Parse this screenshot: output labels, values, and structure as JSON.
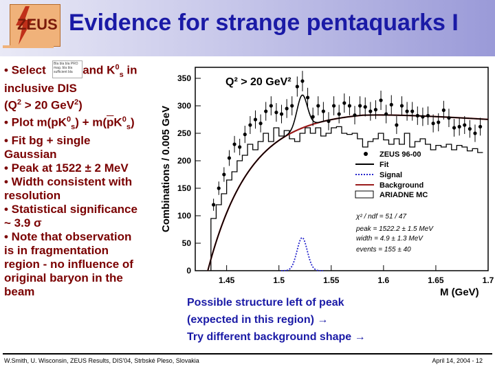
{
  "header": {
    "title": "Evidence for strange pentaquarks I",
    "logo_text": "ZEUS"
  },
  "bullets": [
    {
      "pre": "• Select ",
      "mid": " and K",
      "sup": "0",
      "sub": "s",
      "post": " in"
    },
    {
      "text": "inclusive DIS"
    },
    {
      "pre": "(Q",
      "sup": "2",
      "mid": " > 20 GeV",
      "sup2": "2",
      "post": ")"
    },
    {
      "pre": "• Plot m(pK",
      "sup": "0",
      "sub": "s",
      "mid": ") + m(",
      "over": "p",
      "mid2": "K",
      "sup2": "0",
      "sub2": "s",
      "post": ")"
    },
    {
      "text": "• Fit bg + single"
    },
    {
      "text": "Gaussian"
    },
    {
      "text": "• Peak at 1522 ± 2 MeV"
    },
    {
      "text": "• Width consistent with"
    },
    {
      "text": "resolution"
    },
    {
      "text": "• Statistical significance"
    },
    {
      "text": "~ 3.9 σ"
    },
    {
      "text": "• Note that observation"
    },
    {
      "text": "is in fragmentation"
    },
    {
      "text": "region - no influence of"
    },
    {
      "text": "original baryon in the"
    },
    {
      "text": "beam"
    }
  ],
  "mini_table_lines": [
    "Bla bla bla PRO",
    "mag. bla bla",
    "sufficient bla"
  ],
  "note": {
    "line1": "Possible structure left of peak",
    "line2": "(expected in this region) →",
    "line3": "Try different background shape  →"
  },
  "footer": {
    "left": "W.Smith, U. Wisconsin, ZEUS Results, DIS'04, Strbské Pleso, Slovakia",
    "right": "April 14, 2004 - 12"
  },
  "colors": {
    "title": "#1a1aa6",
    "bullets": "#7a0000",
    "fit": "#000000",
    "signal": "#2222cc",
    "background": "#9a1a1a"
  },
  "chart_data": {
    "type": "scatter",
    "annotation_top": "Q² > 20 GeV²",
    "ylabel": "Combinations / 0.005 GeV",
    "xlabel": "M (GeV)",
    "xlim": [
      1.42,
      1.7
    ],
    "ylim": [
      0,
      370
    ],
    "xticks": [
      "1.45",
      "1.5",
      "1.55",
      "1.6",
      "1.65",
      "1.7"
    ],
    "yticks": [
      "0",
      "50",
      "100",
      "150",
      "200",
      "250",
      "300",
      "350"
    ],
    "legend": [
      "ZEUS 96-00",
      "Fit",
      "Signal",
      "Background",
      "ARIADNE MC"
    ],
    "fit_text": {
      "chi2": "χ² / ndf = 51 / 47",
      "peak": "peak = 1522.2 ± 1.5 MeV",
      "width": "width = 4.9 ± 1.3 MeV",
      "events": "events = 155 ± 40"
    },
    "data_points": [
      {
        "x": 1.4375,
        "y": 120
      },
      {
        "x": 1.4425,
        "y": 150
      },
      {
        "x": 1.4475,
        "y": 175
      },
      {
        "x": 1.4525,
        "y": 205
      },
      {
        "x": 1.4575,
        "y": 230
      },
      {
        "x": 1.4625,
        "y": 225
      },
      {
        "x": 1.4675,
        "y": 248
      },
      {
        "x": 1.4725,
        "y": 265
      },
      {
        "x": 1.4775,
        "y": 275
      },
      {
        "x": 1.4825,
        "y": 268
      },
      {
        "x": 1.4875,
        "y": 290
      },
      {
        "x": 1.4925,
        "y": 300
      },
      {
        "x": 1.4975,
        "y": 288
      },
      {
        "x": 1.5025,
        "y": 285
      },
      {
        "x": 1.5075,
        "y": 295
      },
      {
        "x": 1.5125,
        "y": 300
      },
      {
        "x": 1.5175,
        "y": 335
      },
      {
        "x": 1.5225,
        "y": 345
      },
      {
        "x": 1.5275,
        "y": 315
      },
      {
        "x": 1.5325,
        "y": 280
      },
      {
        "x": 1.5375,
        "y": 300
      },
      {
        "x": 1.5425,
        "y": 290
      },
      {
        "x": 1.5475,
        "y": 272
      },
      {
        "x": 1.5525,
        "y": 300
      },
      {
        "x": 1.5575,
        "y": 285
      },
      {
        "x": 1.5625,
        "y": 305
      },
      {
        "x": 1.5675,
        "y": 300
      },
      {
        "x": 1.5725,
        "y": 283
      },
      {
        "x": 1.5775,
        "y": 300
      },
      {
        "x": 1.5825,
        "y": 298
      },
      {
        "x": 1.5875,
        "y": 290
      },
      {
        "x": 1.5925,
        "y": 293
      },
      {
        "x": 1.5975,
        "y": 310
      },
      {
        "x": 1.6025,
        "y": 285
      },
      {
        "x": 1.6075,
        "y": 302
      },
      {
        "x": 1.6125,
        "y": 265
      },
      {
        "x": 1.6175,
        "y": 300
      },
      {
        "x": 1.6225,
        "y": 290
      },
      {
        "x": 1.6275,
        "y": 290
      },
      {
        "x": 1.6325,
        "y": 282
      },
      {
        "x": 1.6375,
        "y": 280
      },
      {
        "x": 1.6425,
        "y": 282
      },
      {
        "x": 1.6475,
        "y": 268
      },
      {
        "x": 1.6525,
        "y": 270
      },
      {
        "x": 1.6575,
        "y": 292
      },
      {
        "x": 1.6625,
        "y": 278
      },
      {
        "x": 1.6675,
        "y": 260
      },
      {
        "x": 1.6725,
        "y": 262
      },
      {
        "x": 1.6775,
        "y": 265
      },
      {
        "x": 1.6825,
        "y": 258
      },
      {
        "x": 1.6875,
        "y": 250
      },
      {
        "x": 1.6925,
        "y": 262
      }
    ],
    "mc_hist": [
      {
        "x0": 1.435,
        "y": 95
      },
      {
        "x0": 1.44,
        "y": 120
      },
      {
        "x0": 1.445,
        "y": 140
      },
      {
        "x0": 1.45,
        "y": 165
      },
      {
        "x0": 1.455,
        "y": 180
      },
      {
        "x0": 1.46,
        "y": 200
      },
      {
        "x0": 1.465,
        "y": 210
      },
      {
        "x0": 1.47,
        "y": 230
      },
      {
        "x0": 1.475,
        "y": 220
      },
      {
        "x0": 1.48,
        "y": 235
      },
      {
        "x0": 1.485,
        "y": 250
      },
      {
        "x0": 1.49,
        "y": 235
      },
      {
        "x0": 1.495,
        "y": 260
      },
      {
        "x0": 1.5,
        "y": 245
      },
      {
        "x0": 1.505,
        "y": 255
      },
      {
        "x0": 1.51,
        "y": 240
      },
      {
        "x0": 1.515,
        "y": 235
      },
      {
        "x0": 1.52,
        "y": 250
      },
      {
        "x0": 1.525,
        "y": 260
      },
      {
        "x0": 1.53,
        "y": 250
      },
      {
        "x0": 1.535,
        "y": 260
      },
      {
        "x0": 1.54,
        "y": 245
      },
      {
        "x0": 1.545,
        "y": 250
      },
      {
        "x0": 1.55,
        "y": 260
      },
      {
        "x0": 1.555,
        "y": 262
      },
      {
        "x0": 1.56,
        "y": 250
      },
      {
        "x0": 1.565,
        "y": 248
      },
      {
        "x0": 1.57,
        "y": 250
      },
      {
        "x0": 1.575,
        "y": 240
      },
      {
        "x0": 1.58,
        "y": 225
      },
      {
        "x0": 1.585,
        "y": 235
      },
      {
        "x0": 1.59,
        "y": 240
      },
      {
        "x0": 1.595,
        "y": 250
      },
      {
        "x0": 1.6,
        "y": 238
      },
      {
        "x0": 1.605,
        "y": 230
      },
      {
        "x0": 1.61,
        "y": 240
      },
      {
        "x0": 1.615,
        "y": 230
      },
      {
        "x0": 1.62,
        "y": 250
      },
      {
        "x0": 1.625,
        "y": 225
      },
      {
        "x0": 1.63,
        "y": 235
      },
      {
        "x0": 1.635,
        "y": 240
      },
      {
        "x0": 1.64,
        "y": 230
      },
      {
        "x0": 1.645,
        "y": 220
      },
      {
        "x0": 1.65,
        "y": 228
      },
      {
        "x0": 1.655,
        "y": 225
      },
      {
        "x0": 1.66,
        "y": 230
      },
      {
        "x0": 1.665,
        "y": 220
      },
      {
        "x0": 1.67,
        "y": 228
      },
      {
        "x0": 1.675,
        "y": 225
      },
      {
        "x0": 1.68,
        "y": 218
      },
      {
        "x0": 1.685,
        "y": 222
      },
      {
        "x0": 1.69,
        "y": 215
      }
    ],
    "background_params": {
      "onset": 1.432,
      "amp": 290,
      "scale": 0.04,
      "slope": 120
    },
    "signal_params": {
      "mean": 1.5222,
      "sigma": 0.0049,
      "height": 60
    }
  }
}
